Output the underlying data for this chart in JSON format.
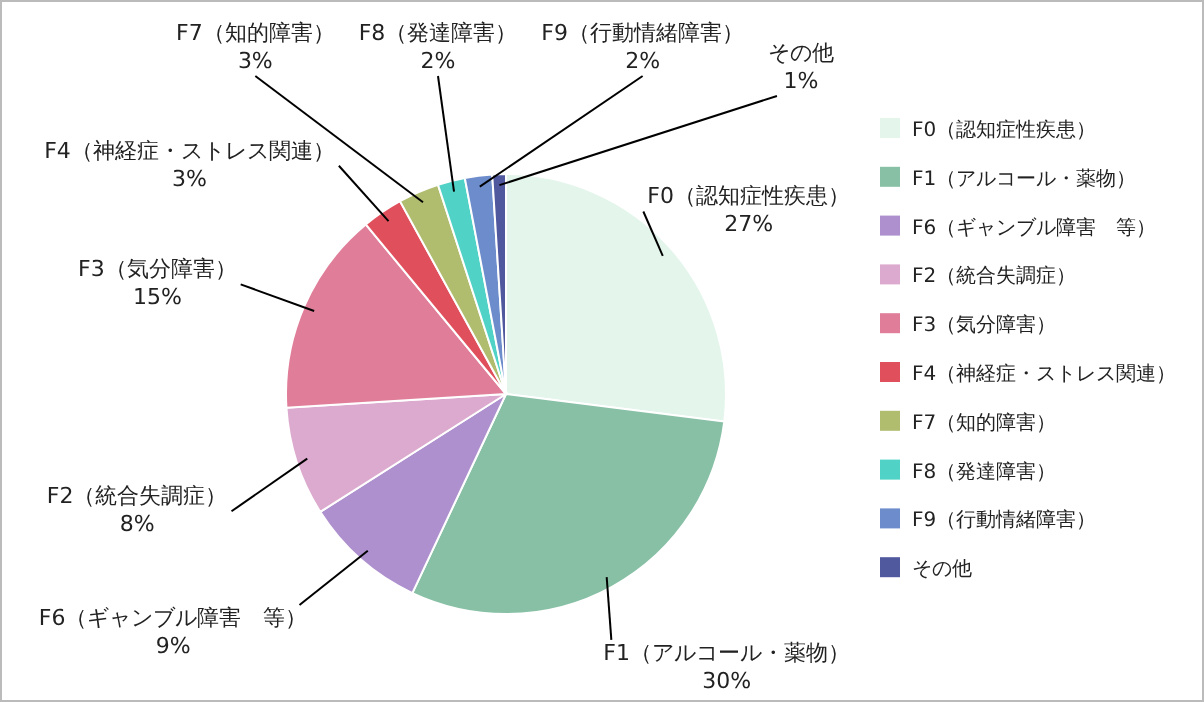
{
  "chart_data": {
    "type": "pie",
    "categories": [
      "F0（認知症性疾患）",
      "F1（アルコール・薬物）",
      "F6（ギャンブル障害　等）",
      "F2（統合失調症）",
      "F3（気分障害）",
      "F4（神経症・ストレス関連）",
      "F7（知的障害）",
      "F8（発達障害）",
      "F9（行動情緒障害）",
      "その他"
    ],
    "values": [
      27,
      30,
      9,
      8,
      15,
      3,
      3,
      2,
      2,
      1
    ],
    "value_labels": [
      "27%",
      "30%",
      "9%",
      "8%",
      "15%",
      "3%",
      "3%",
      "2%",
      "2%",
      "1%"
    ],
    "colors": [
      "#e4f5ec",
      "#88c0a6",
      "#ad90cd",
      "#dcaace",
      "#e07e9a",
      "#e0505c",
      "#b0bc6e",
      "#50d2c6",
      "#6c8ccc",
      "#50589e"
    ],
    "legend": "right"
  }
}
